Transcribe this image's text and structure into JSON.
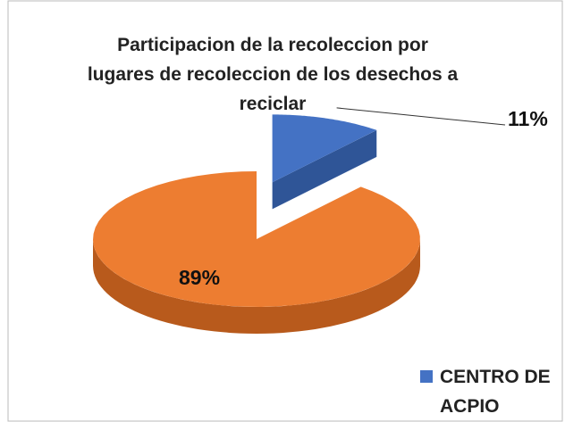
{
  "chart_data": {
    "type": "pie",
    "title": "Participacion de la recoleccion por lugares de recoleccion de los desechos a reciclar",
    "categories": [
      "CENTRO DE ACPIO",
      null
    ],
    "values": [
      11,
      89
    ],
    "value_labels": [
      "11%",
      "89%"
    ],
    "colors": [
      "#4472c4",
      "#ed7d31"
    ],
    "side_colors": [
      "#2f5597",
      "#b85a1c"
    ],
    "legend": "bottom-right"
  }
}
